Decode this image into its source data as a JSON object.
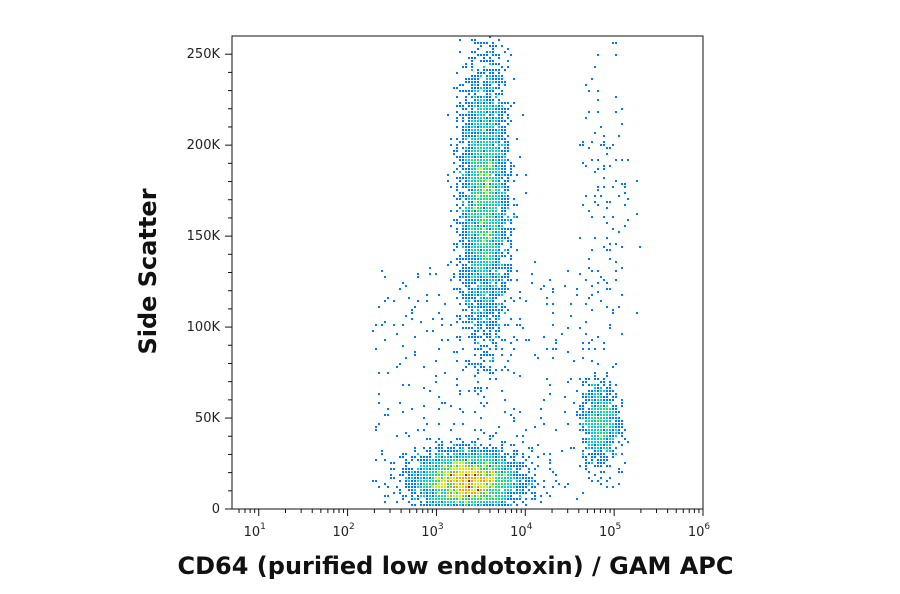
{
  "chart_data": {
    "type": "scatter",
    "subtype": "flow-cytometry density dot plot",
    "xlabel": "CD64 (purified low endotoxin) / GAM APC",
    "ylabel": "Side Scatter",
    "x_scale": "log",
    "xlim": [
      5,
      1000000
    ],
    "y_scale": "linear",
    "ylim": [
      0,
      260000
    ],
    "x_ticks": [
      {
        "base": "10",
        "exp": "1",
        "value": 10
      },
      {
        "base": "10",
        "exp": "2",
        "value": 100
      },
      {
        "base": "10",
        "exp": "3",
        "value": 1000
      },
      {
        "base": "10",
        "exp": "4",
        "value": 10000
      },
      {
        "base": "10",
        "exp": "5",
        "value": 100000
      },
      {
        "base": "10",
        "exp": "6",
        "value": 1000000
      }
    ],
    "y_ticks": [
      {
        "label": "0",
        "value": 0
      },
      {
        "label": "50K",
        "value": 50000
      },
      {
        "label": "100K",
        "value": 100000
      },
      {
        "label": "150K",
        "value": 150000
      },
      {
        "label": "200K",
        "value": 200000
      },
      {
        "label": "250K",
        "value": 250000
      }
    ],
    "grid": false,
    "legend": "none",
    "color_scale": [
      "#0000cc",
      "#0077ff",
      "#00ccdd",
      "#22dd66",
      "#ccee00",
      "#ff9900",
      "#ee0000"
    ],
    "populations": [
      {
        "label": "low-SSC CD64-low cluster",
        "x_center": 2200,
        "y_center": 15000,
        "x_spread_log10": 0.28,
        "y_spread": 8000,
        "count": 4500
      },
      {
        "label": "high-SSC vertical cluster",
        "x_center": 3500,
        "y_center": 170000,
        "x_spread_log10": 0.13,
        "y_spread": 38000,
        "count": 4200
      },
      {
        "label": "CD64-high cluster",
        "x_center": 70000,
        "y_center": 48000,
        "x_spread_log10": 0.1,
        "y_spread": 11000,
        "count": 900
      },
      {
        "label": "CD64-high high-SSC sparse events",
        "x_center": 80000,
        "y_center": 170000,
        "x_spread_log10": 0.15,
        "y_spread": 45000,
        "count": 120
      }
    ]
  }
}
